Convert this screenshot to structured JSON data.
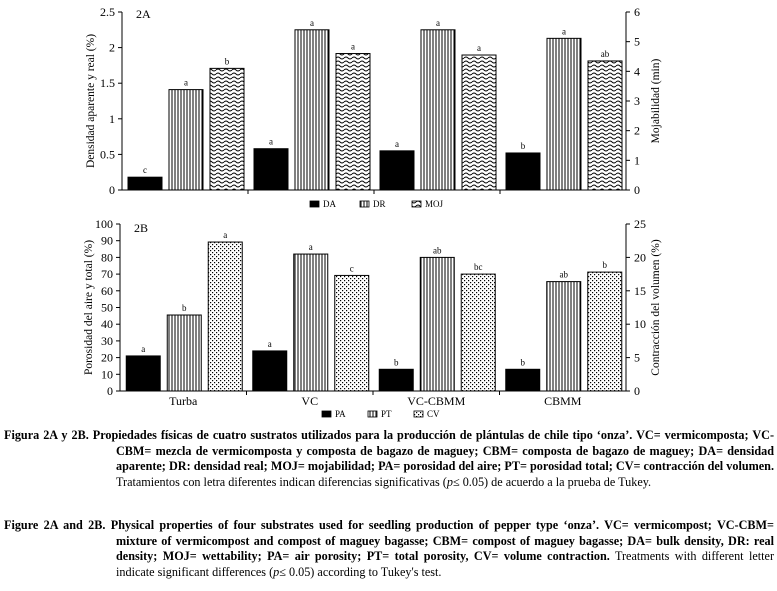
{
  "chart_data": [
    {
      "type": "bar",
      "panel_label": "2A",
      "categories": [
        "Turba",
        "VC",
        "VC-CBMM",
        "CBMM"
      ],
      "ylabel_left": "Densidad aparente y real (%)",
      "ylabel_right": "Mojabilidad (min)",
      "ylim_left": [
        0,
        2.5
      ],
      "ylim_right": [
        0,
        6
      ],
      "yticks_left": [
        "0",
        "0.5",
        "1",
        "1.5",
        "2",
        "2.5"
      ],
      "yticks_right": [
        "0",
        "1",
        "2",
        "3",
        "4",
        "5",
        "6"
      ],
      "series": [
        {
          "name": "DA",
          "axis": "left",
          "pattern": "solid",
          "values": [
            0.18,
            0.58,
            0.55,
            0.52
          ],
          "letters": [
            "c",
            "a",
            "a",
            "b"
          ]
        },
        {
          "name": "DR",
          "axis": "left",
          "pattern": "vertical",
          "values": [
            1.41,
            2.25,
            2.25,
            2.13
          ],
          "letters": [
            "a",
            "a",
            "a",
            "a"
          ]
        },
        {
          "name": "MOJ",
          "axis": "right",
          "pattern": "wavy",
          "values": [
            4.1,
            4.6,
            4.55,
            4.35
          ],
          "letters": [
            "b",
            "a",
            "a",
            "ab"
          ]
        }
      ],
      "legend": [
        "DA",
        "DR",
        "MOJ"
      ]
    },
    {
      "type": "bar",
      "panel_label": "2B",
      "categories": [
        "Turba",
        "VC",
        "VC-CBMM",
        "CBMM"
      ],
      "ylabel_left": "Porosidad del aire y total (%)",
      "ylabel_right": "Contracción del volumen (%)",
      "ylim_left": [
        0,
        100
      ],
      "ylim_right": [
        0,
        25
      ],
      "yticks_left": [
        "0",
        "10",
        "20",
        "30",
        "40",
        "50",
        "60",
        "70",
        "80",
        "90",
        "100"
      ],
      "yticks_right": [
        "0",
        "5",
        "10",
        "15",
        "20",
        "25"
      ],
      "series": [
        {
          "name": "PA",
          "axis": "left",
          "pattern": "solid",
          "values": [
            21,
            24,
            13,
            13
          ],
          "letters": [
            "a",
            "a",
            "b",
            "b"
          ]
        },
        {
          "name": "PT",
          "axis": "left",
          "pattern": "vertical",
          "values": [
            45.5,
            82,
            80,
            65.5
          ],
          "letters": [
            "b",
            "a",
            "ab",
            "ab"
          ]
        },
        {
          "name": "CV",
          "axis": "right",
          "pattern": "dots",
          "values": [
            22.3,
            17.3,
            17.5,
            17.8
          ],
          "letters": [
            "a",
            "c",
            "bc",
            "b"
          ]
        }
      ],
      "legend": [
        "PA",
        "PT",
        "CV"
      ]
    }
  ],
  "caption": {
    "es": {
      "lead": "Figura 2A y 2B.",
      "bold": "Propiedades físicas de cuatro sustratos utilizados para la producción de plántulas de chile tipo ‘onza’. VC= vermicomposta; VC-CBM= mezcla de vermicomposta y composta de bagazo de maguey; CBM= composta de bagazo de maguey; DA= densidad aparente; DR: densidad real; MOJ= mojabilidad; PA= porosidad del aire; PT= porosidad total; CV= contracción del volumen.",
      "normal1": "Tratamientos con letra diferentes indican diferencias significativas (",
      "pvalue": "p",
      "normal2": "≤ 0.05) de acuerdo a la prueba de Tukey."
    },
    "en": {
      "lead": "Figure 2A and 2B.",
      "bold": "Physical properties of four substrates used for seedling production of pepper type ‘onza’. VC= vermicompost; VC-CBM= mixture of vermicompost and compost of maguey bagasse; CBM= compost of maguey bagasse; DA= bulk density, DR: real density; MOJ= wettability; PA= air porosity; PT= total porosity, CV= volume contraction.",
      "normal1": "Treatments with different letter indicate significant differences (",
      "pvalue": "p",
      "normal2": "≤ 0.05) according to Tukey's test."
    }
  }
}
